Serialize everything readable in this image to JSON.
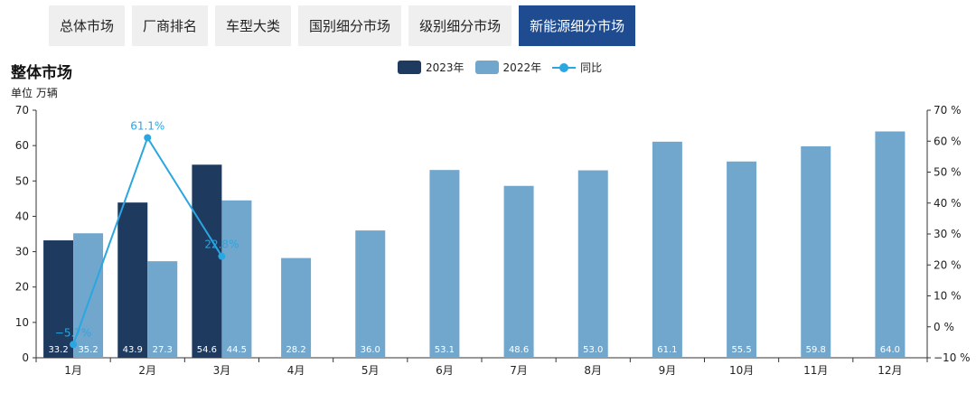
{
  "tabs": [
    {
      "label": "总体市场",
      "active": false
    },
    {
      "label": "厂商排名",
      "active": false
    },
    {
      "label": "车型大类",
      "active": false
    },
    {
      "label": "国别细分市场",
      "active": false
    },
    {
      "label": "级别细分市场",
      "active": false
    },
    {
      "label": "新能源细分市场",
      "active": true
    }
  ],
  "colors": {
    "tab_active_bg": "#1f4b91",
    "series_2023": "#1e3a5f",
    "series_2022": "#72a7cd",
    "series_yoy": "#2aa6e0"
  },
  "chart_data": {
    "type": "bar",
    "title": "整体市场",
    "unit": "单位 万辆",
    "categories": [
      "1月",
      "2月",
      "3月",
      "4月",
      "5月",
      "6月",
      "7月",
      "8月",
      "9月",
      "10月",
      "11月",
      "12月"
    ],
    "series": [
      {
        "name": "2023年",
        "type": "bar",
        "values": [
          33.2,
          43.9,
          54.6,
          null,
          null,
          null,
          null,
          null,
          null,
          null,
          null,
          null
        ]
      },
      {
        "name": "2022年",
        "type": "bar",
        "values": [
          35.2,
          27.3,
          44.5,
          28.2,
          36.0,
          53.1,
          48.6,
          53.0,
          61.1,
          55.5,
          59.8,
          64.0
        ]
      },
      {
        "name": "同比",
        "type": "line",
        "axis": "right",
        "values": [
          -5.7,
          61.1,
          22.8,
          null,
          null,
          null,
          null,
          null,
          null,
          null,
          null,
          null
        ]
      }
    ],
    "y_left": {
      "min": 0,
      "max": 70,
      "ticks": [
        0,
        10,
        20,
        30,
        40,
        50,
        60,
        70
      ]
    },
    "y_right": {
      "min": -10,
      "max": 70,
      "ticks": [
        "−10 %",
        "0 %",
        "10 %",
        "20 %",
        "30 %",
        "40 %",
        "50 %",
        "60 %",
        "70 %"
      ],
      "tick_values": [
        -10,
        0,
        10,
        20,
        30,
        40,
        50,
        60,
        70
      ]
    },
    "legend_position": "top-center",
    "grid": false
  }
}
